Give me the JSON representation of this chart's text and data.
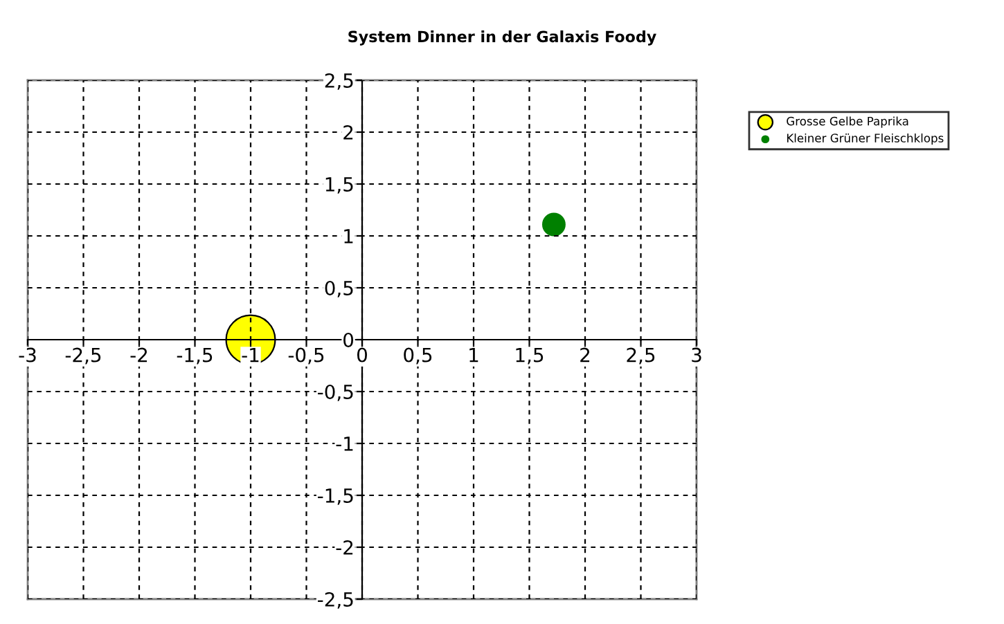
{
  "chart_data": {
    "type": "bubble",
    "title": "System Dinner in der Galaxis Foody",
    "series": [
      {
        "name": "Grosse Gelbe Paprika",
        "color": "#ffff00",
        "x": [
          -1
        ],
        "values": [
          0
        ],
        "sizes": [
          1
        ]
      },
      {
        "name": "Kleiner Grüner Fleischklops",
        "color": "#008000",
        "x": [
          1.72
        ],
        "values": [
          1.11
        ],
        "sizes": [
          0.2
        ]
      }
    ],
    "xlim": [
      -3,
      3
    ],
    "ylim": [
      -2.5,
      2.5
    ],
    "xticks": [
      -3,
      {
        "value": -2.5,
        "label": "-2,5"
      },
      -2,
      {
        "value": -1.5,
        "label": "-1,5"
      },
      -1,
      {
        "value": -0.5,
        "label": "-0,5"
      },
      0,
      {
        "value": 0.5,
        "label": "0,5"
      },
      1,
      {
        "value": 1.5,
        "label": "1,5"
      },
      2,
      {
        "value": 2.5,
        "label": "2,5"
      },
      3
    ],
    "yticks": [
      {
        "value": -2.5,
        "label": "-2,5"
      },
      -2,
      {
        "value": -1.5,
        "label": "-1,5"
      },
      -1,
      {
        "value": -0.5,
        "label": "-0,5"
      },
      0,
      {
        "value": 0.5,
        "label": "0,5"
      },
      1,
      {
        "value": 1.5,
        "label": "1,5"
      },
      2,
      {
        "value": 2.5,
        "label": "2,5"
      }
    ],
    "grid": true,
    "line_style": "dashed",
    "legend": "top right"
  }
}
